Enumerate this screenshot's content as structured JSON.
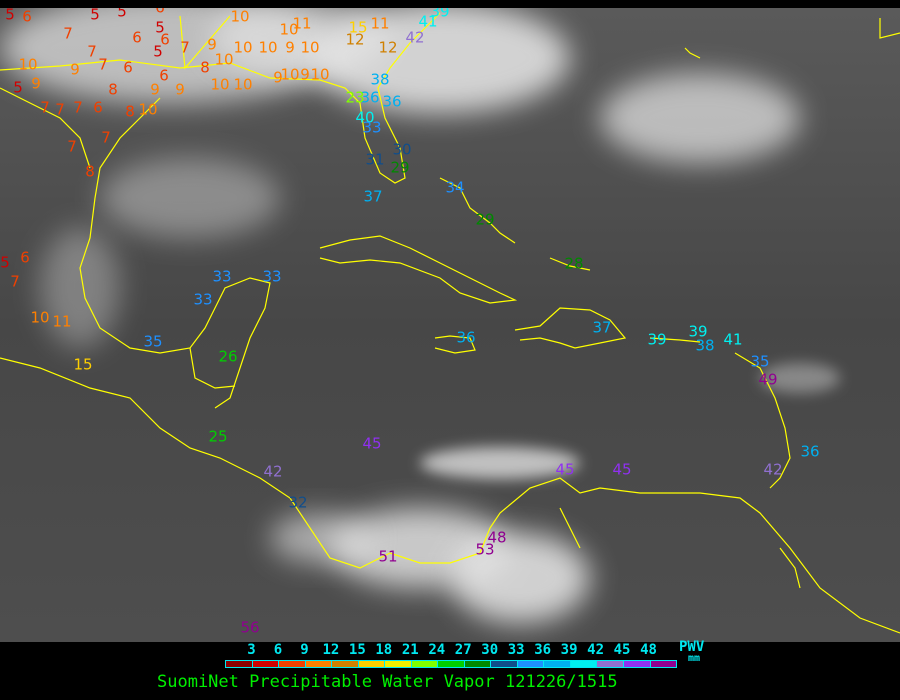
{
  "title": "SuomiNet Precipitable Water Vapor 121226/1515",
  "legend": {
    "label": "PWV",
    "unit": "mm",
    "ticks": [
      "3",
      "6",
      "9",
      "12",
      "15",
      "18",
      "21",
      "24",
      "27",
      "30",
      "33",
      "36",
      "39",
      "42",
      "45",
      "48"
    ],
    "colors": [
      "#8b0000",
      "#d00000",
      "#f04000",
      "#ff8000",
      "#d08000",
      "#ffd000",
      "#f0f000",
      "#80ff00",
      "#00d000",
      "#008800",
      "#104e8b",
      "#1e90ff",
      "#00b0f0",
      "#00f0f0",
      "#9070d0",
      "#9030f0",
      "#900090"
    ]
  },
  "map": {
    "coastline_color": "#ffff00",
    "background": "grayscale infrared satellite imagery",
    "stations": [
      "5",
      "6",
      "5",
      "5",
      "6",
      "5",
      "7",
      "7",
      "6",
      "6",
      "5",
      "7",
      "9",
      "10",
      "10",
      "10",
      "9",
      "10",
      "11",
      "10",
      "15",
      "11",
      "12",
      "12",
      "41",
      "39",
      "42",
      "10",
      "9",
      "7",
      "6",
      "5",
      "9",
      "7",
      "6",
      "8",
      "9",
      "9",
      "6",
      "7",
      "7",
      "10",
      "10",
      "9",
      "10",
      "9",
      "10",
      "8",
      "10",
      "8",
      "10",
      "7",
      "7",
      "8",
      "38",
      "36",
      "36",
      "23",
      "40",
      "33",
      "31",
      "30",
      "29",
      "37",
      "34",
      "29",
      "5",
      "6",
      "7",
      "10",
      "11",
      "15",
      "33",
      "33",
      "33",
      "35",
      "26",
      "25",
      "42",
      "32",
      "45",
      "28",
      "36",
      "37",
      "39",
      "39",
      "38",
      "41",
      "35",
      "49",
      "36",
      "42",
      "45",
      "45",
      "53",
      "48",
      "51",
      "56"
    ]
  }
}
